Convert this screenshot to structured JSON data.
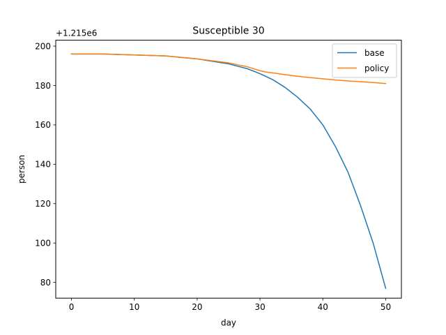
{
  "chart_data": {
    "type": "line",
    "title": "Susceptible 30",
    "xlabel": "day",
    "ylabel": "person",
    "offset_label": "+1.215e6",
    "xlim": [
      -2.5,
      52.5
    ],
    "ylim": [
      72,
      203
    ],
    "xticks": [
      0,
      10,
      20,
      30,
      40,
      50
    ],
    "yticks": [
      80,
      100,
      120,
      140,
      160,
      180,
      200
    ],
    "grid": false,
    "legend": "top-right",
    "x": [
      0,
      5,
      10,
      15,
      20,
      25,
      28,
      30,
      31,
      32,
      34,
      36,
      38,
      40,
      42,
      44,
      46,
      48,
      50
    ],
    "series": [
      {
        "name": "base",
        "color": "#1f77b4",
        "values": [
          196,
          196,
          195.5,
          195,
          193.5,
          191,
          188.5,
          186,
          184.5,
          183,
          179,
          174,
          168,
          160,
          149,
          136,
          119,
          100,
          77
        ]
      },
      {
        "name": "policy",
        "color": "#ff7f0e",
        "values": [
          196,
          196,
          195.5,
          195,
          193.5,
          191.5,
          189.5,
          187.5,
          186.8,
          186.4,
          185.5,
          184.7,
          184,
          183.4,
          182.8,
          182.3,
          181.9,
          181.5,
          181
        ]
      }
    ]
  }
}
